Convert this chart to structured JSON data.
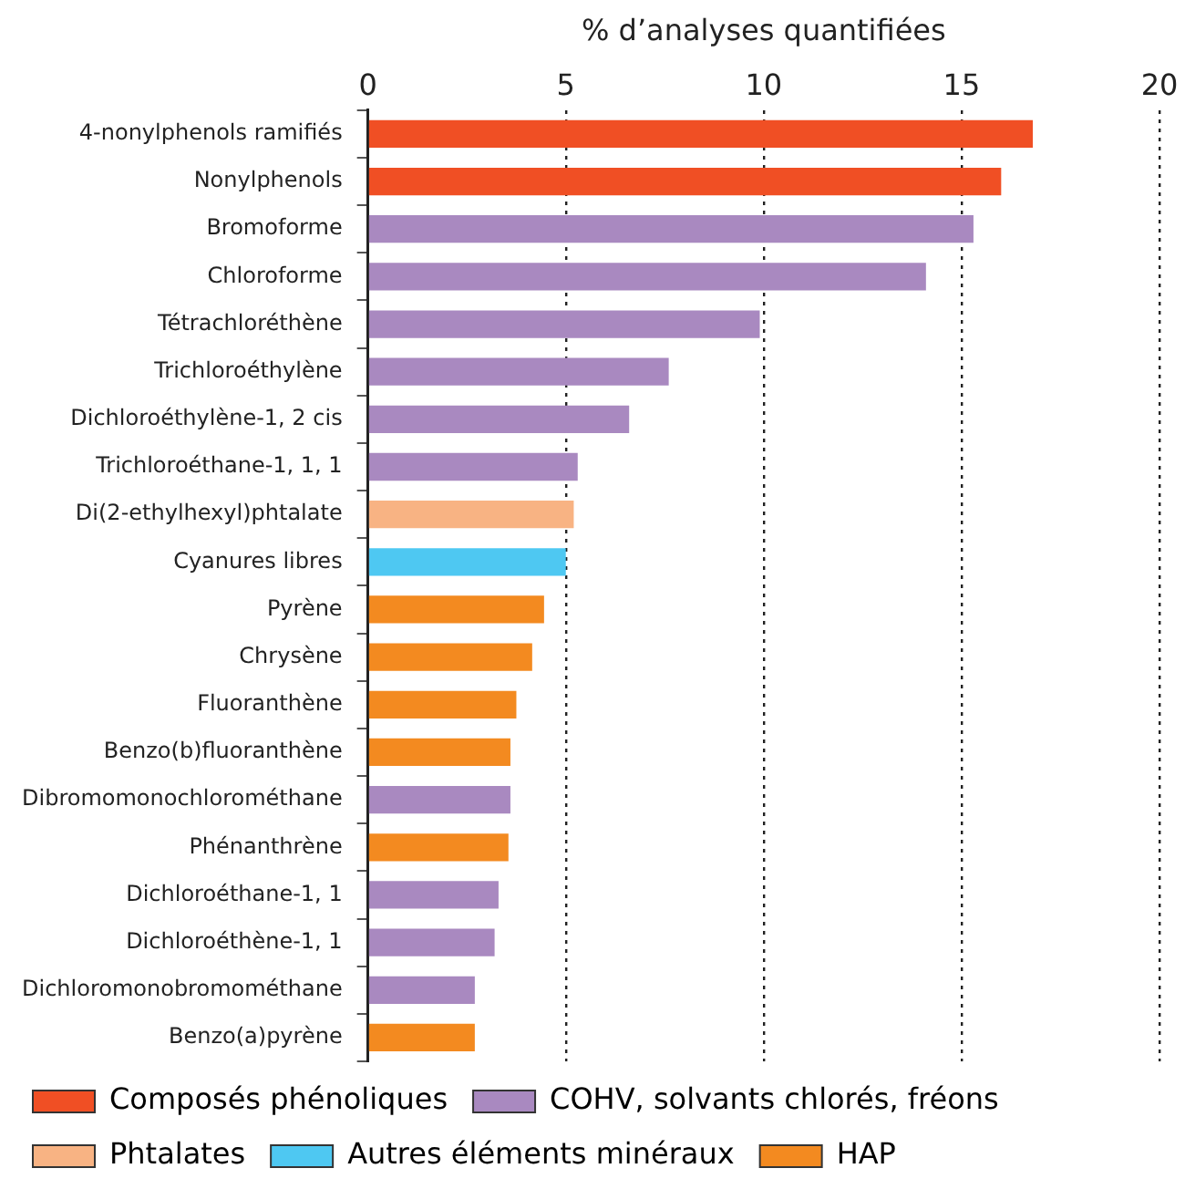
{
  "chart_data": {
    "type": "bar",
    "orientation": "horizontal",
    "xlabel": "% d’analyses quantifiées",
    "categories": [
      "4-nonylphenols ramifiés",
      "Nonylphenols",
      "Bromoforme",
      "Chloroforme",
      "Tétrachloréthène",
      "Trichloroéthylène",
      "Dichloroéthylène-1, 2 cis",
      "Trichloroéthane-1, 1, 1",
      "Di(2-ethylhexyl)phtalate",
      "Cyanures libres",
      "Pyrène",
      "Chrysène",
      "Fluoranthène",
      "Benzo(b)fluoranthène",
      "Dibromomonochlorométhane",
      "Phénanthrène",
      "Dichloroéthane-1, 1",
      "Dichloroéthène-1, 1",
      "Dichloromonobromométhane",
      "Benzo(a)pyrène"
    ],
    "series": [
      {
        "name": "Composés phénoliques",
        "color": "#f04f24",
        "values": [
          16.8,
          16.0,
          null,
          null,
          null,
          null,
          null,
          null,
          null,
          null,
          null,
          null,
          null,
          null,
          null,
          null,
          null,
          null,
          null,
          null
        ]
      },
      {
        "name": "COHV, solvants chlorés, fréons",
        "color": "#a989c0",
        "values": [
          null,
          null,
          15.3,
          14.1,
          9.9,
          7.6,
          6.6,
          5.3,
          null,
          null,
          null,
          null,
          null,
          null,
          3.6,
          null,
          3.3,
          3.2,
          2.7,
          null
        ]
      },
      {
        "name": "Phtalates",
        "color": "#f8b383",
        "values": [
          null,
          null,
          null,
          null,
          null,
          null,
          null,
          null,
          5.2,
          null,
          null,
          null,
          null,
          null,
          null,
          null,
          null,
          null,
          null,
          null
        ]
      },
      {
        "name": "Autres éléments minéraux",
        "color": "#4ec8f2",
        "values": [
          null,
          null,
          null,
          null,
          null,
          null,
          null,
          null,
          null,
          5.0,
          null,
          null,
          null,
          null,
          null,
          null,
          null,
          null,
          null,
          null
        ]
      },
      {
        "name": "HAP",
        "color": "#f38a20",
        "values": [
          null,
          null,
          null,
          null,
          null,
          null,
          null,
          null,
          null,
          null,
          4.45,
          4.15,
          3.75,
          3.6,
          null,
          3.55,
          null,
          null,
          null,
          2.7
        ]
      }
    ],
    "xlim": [
      0,
      20
    ],
    "xticks": [
      0,
      5,
      10,
      15,
      20
    ],
    "grid": "x",
    "legend": "bottom"
  }
}
